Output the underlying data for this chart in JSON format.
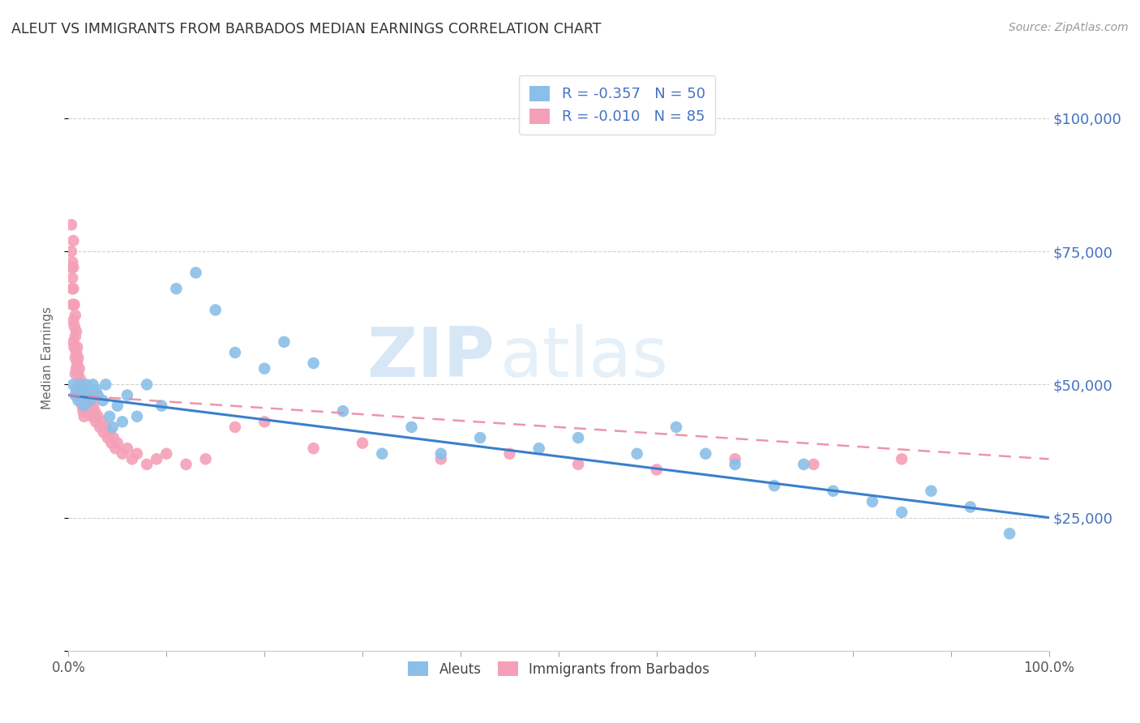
{
  "title": "ALEUT VS IMMIGRANTS FROM BARBADOS MEDIAN EARNINGS CORRELATION CHART",
  "source": "Source: ZipAtlas.com",
  "ylabel": "Median Earnings",
  "xlim": [
    0.0,
    1.0
  ],
  "ylim": [
    0,
    110000
  ],
  "yticks": [
    0,
    25000,
    50000,
    75000,
    100000
  ],
  "ytick_labels": [
    "",
    "$25,000",
    "$50,000",
    "$75,000",
    "$100,000"
  ],
  "legend_label1": "R = -0.357   N = 50",
  "legend_label2": "R = -0.010   N = 85",
  "legend_bottom_label1": "Aleuts",
  "legend_bottom_label2": "Immigrants from Barbados",
  "watermark_zip": "ZIP",
  "watermark_atlas": "atlas",
  "aleuts_color": "#8BBFE8",
  "barbados_color": "#F4A0B8",
  "aleuts_line_color": "#3B7FCC",
  "barbados_line_color": "#E8859A",
  "right_tick_color": "#4472C4",
  "background_color": "#FFFFFF",
  "aleuts_x": [
    0.005,
    0.007,
    0.008,
    0.01,
    0.012,
    0.013,
    0.015,
    0.016,
    0.018,
    0.02,
    0.022,
    0.025,
    0.028,
    0.03,
    0.035,
    0.038,
    0.042,
    0.045,
    0.05,
    0.055,
    0.06,
    0.07,
    0.08,
    0.095,
    0.11,
    0.13,
    0.15,
    0.17,
    0.2,
    0.22,
    0.25,
    0.28,
    0.32,
    0.35,
    0.38,
    0.42,
    0.48,
    0.52,
    0.58,
    0.62,
    0.65,
    0.68,
    0.72,
    0.75,
    0.78,
    0.82,
    0.85,
    0.88,
    0.92,
    0.96
  ],
  "aleuts_y": [
    50000,
    48000,
    49000,
    47000,
    50000,
    48000,
    49000,
    46000,
    50000,
    48000,
    47000,
    50000,
    49000,
    48000,
    47000,
    50000,
    44000,
    42000,
    46000,
    43000,
    48000,
    44000,
    50000,
    46000,
    68000,
    71000,
    64000,
    56000,
    53000,
    58000,
    54000,
    45000,
    37000,
    42000,
    37000,
    40000,
    38000,
    40000,
    37000,
    42000,
    37000,
    35000,
    31000,
    35000,
    30000,
    28000,
    26000,
    30000,
    27000,
    22000
  ],
  "barbados_x": [
    0.003,
    0.003,
    0.003,
    0.004,
    0.004,
    0.004,
    0.004,
    0.005,
    0.005,
    0.005,
    0.005,
    0.005,
    0.005,
    0.006,
    0.006,
    0.006,
    0.007,
    0.007,
    0.007,
    0.007,
    0.008,
    0.008,
    0.008,
    0.009,
    0.009,
    0.01,
    0.01,
    0.01,
    0.011,
    0.011,
    0.012,
    0.012,
    0.013,
    0.013,
    0.014,
    0.014,
    0.015,
    0.015,
    0.016,
    0.016,
    0.017,
    0.018,
    0.018,
    0.019,
    0.02,
    0.02,
    0.021,
    0.022,
    0.023,
    0.024,
    0.025,
    0.026,
    0.027,
    0.028,
    0.03,
    0.032,
    0.034,
    0.036,
    0.038,
    0.04,
    0.042,
    0.044,
    0.046,
    0.048,
    0.05,
    0.055,
    0.06,
    0.065,
    0.07,
    0.08,
    0.09,
    0.1,
    0.12,
    0.14,
    0.17,
    0.2,
    0.25,
    0.3,
    0.38,
    0.45,
    0.52,
    0.6,
    0.68,
    0.76,
    0.85
  ],
  "barbados_y": [
    80000,
    75000,
    72000,
    73000,
    70000,
    68000,
    65000,
    77000,
    72000,
    68000,
    65000,
    62000,
    58000,
    65000,
    61000,
    57000,
    63000,
    59000,
    55000,
    52000,
    60000,
    56000,
    53000,
    57000,
    54000,
    55000,
    52000,
    49000,
    53000,
    50000,
    51000,
    48000,
    50000,
    47000,
    49000,
    46000,
    48000,
    45000,
    47000,
    44000,
    46000,
    48000,
    45000,
    47000,
    49000,
    46000,
    48000,
    45000,
    47000,
    44000,
    46000,
    44000,
    45000,
    43000,
    44000,
    42000,
    43000,
    41000,
    42000,
    40000,
    41000,
    39000,
    40000,
    38000,
    39000,
    37000,
    38000,
    36000,
    37000,
    35000,
    36000,
    37000,
    35000,
    36000,
    42000,
    43000,
    38000,
    39000,
    36000,
    37000,
    35000,
    34000,
    36000,
    35000,
    36000
  ]
}
